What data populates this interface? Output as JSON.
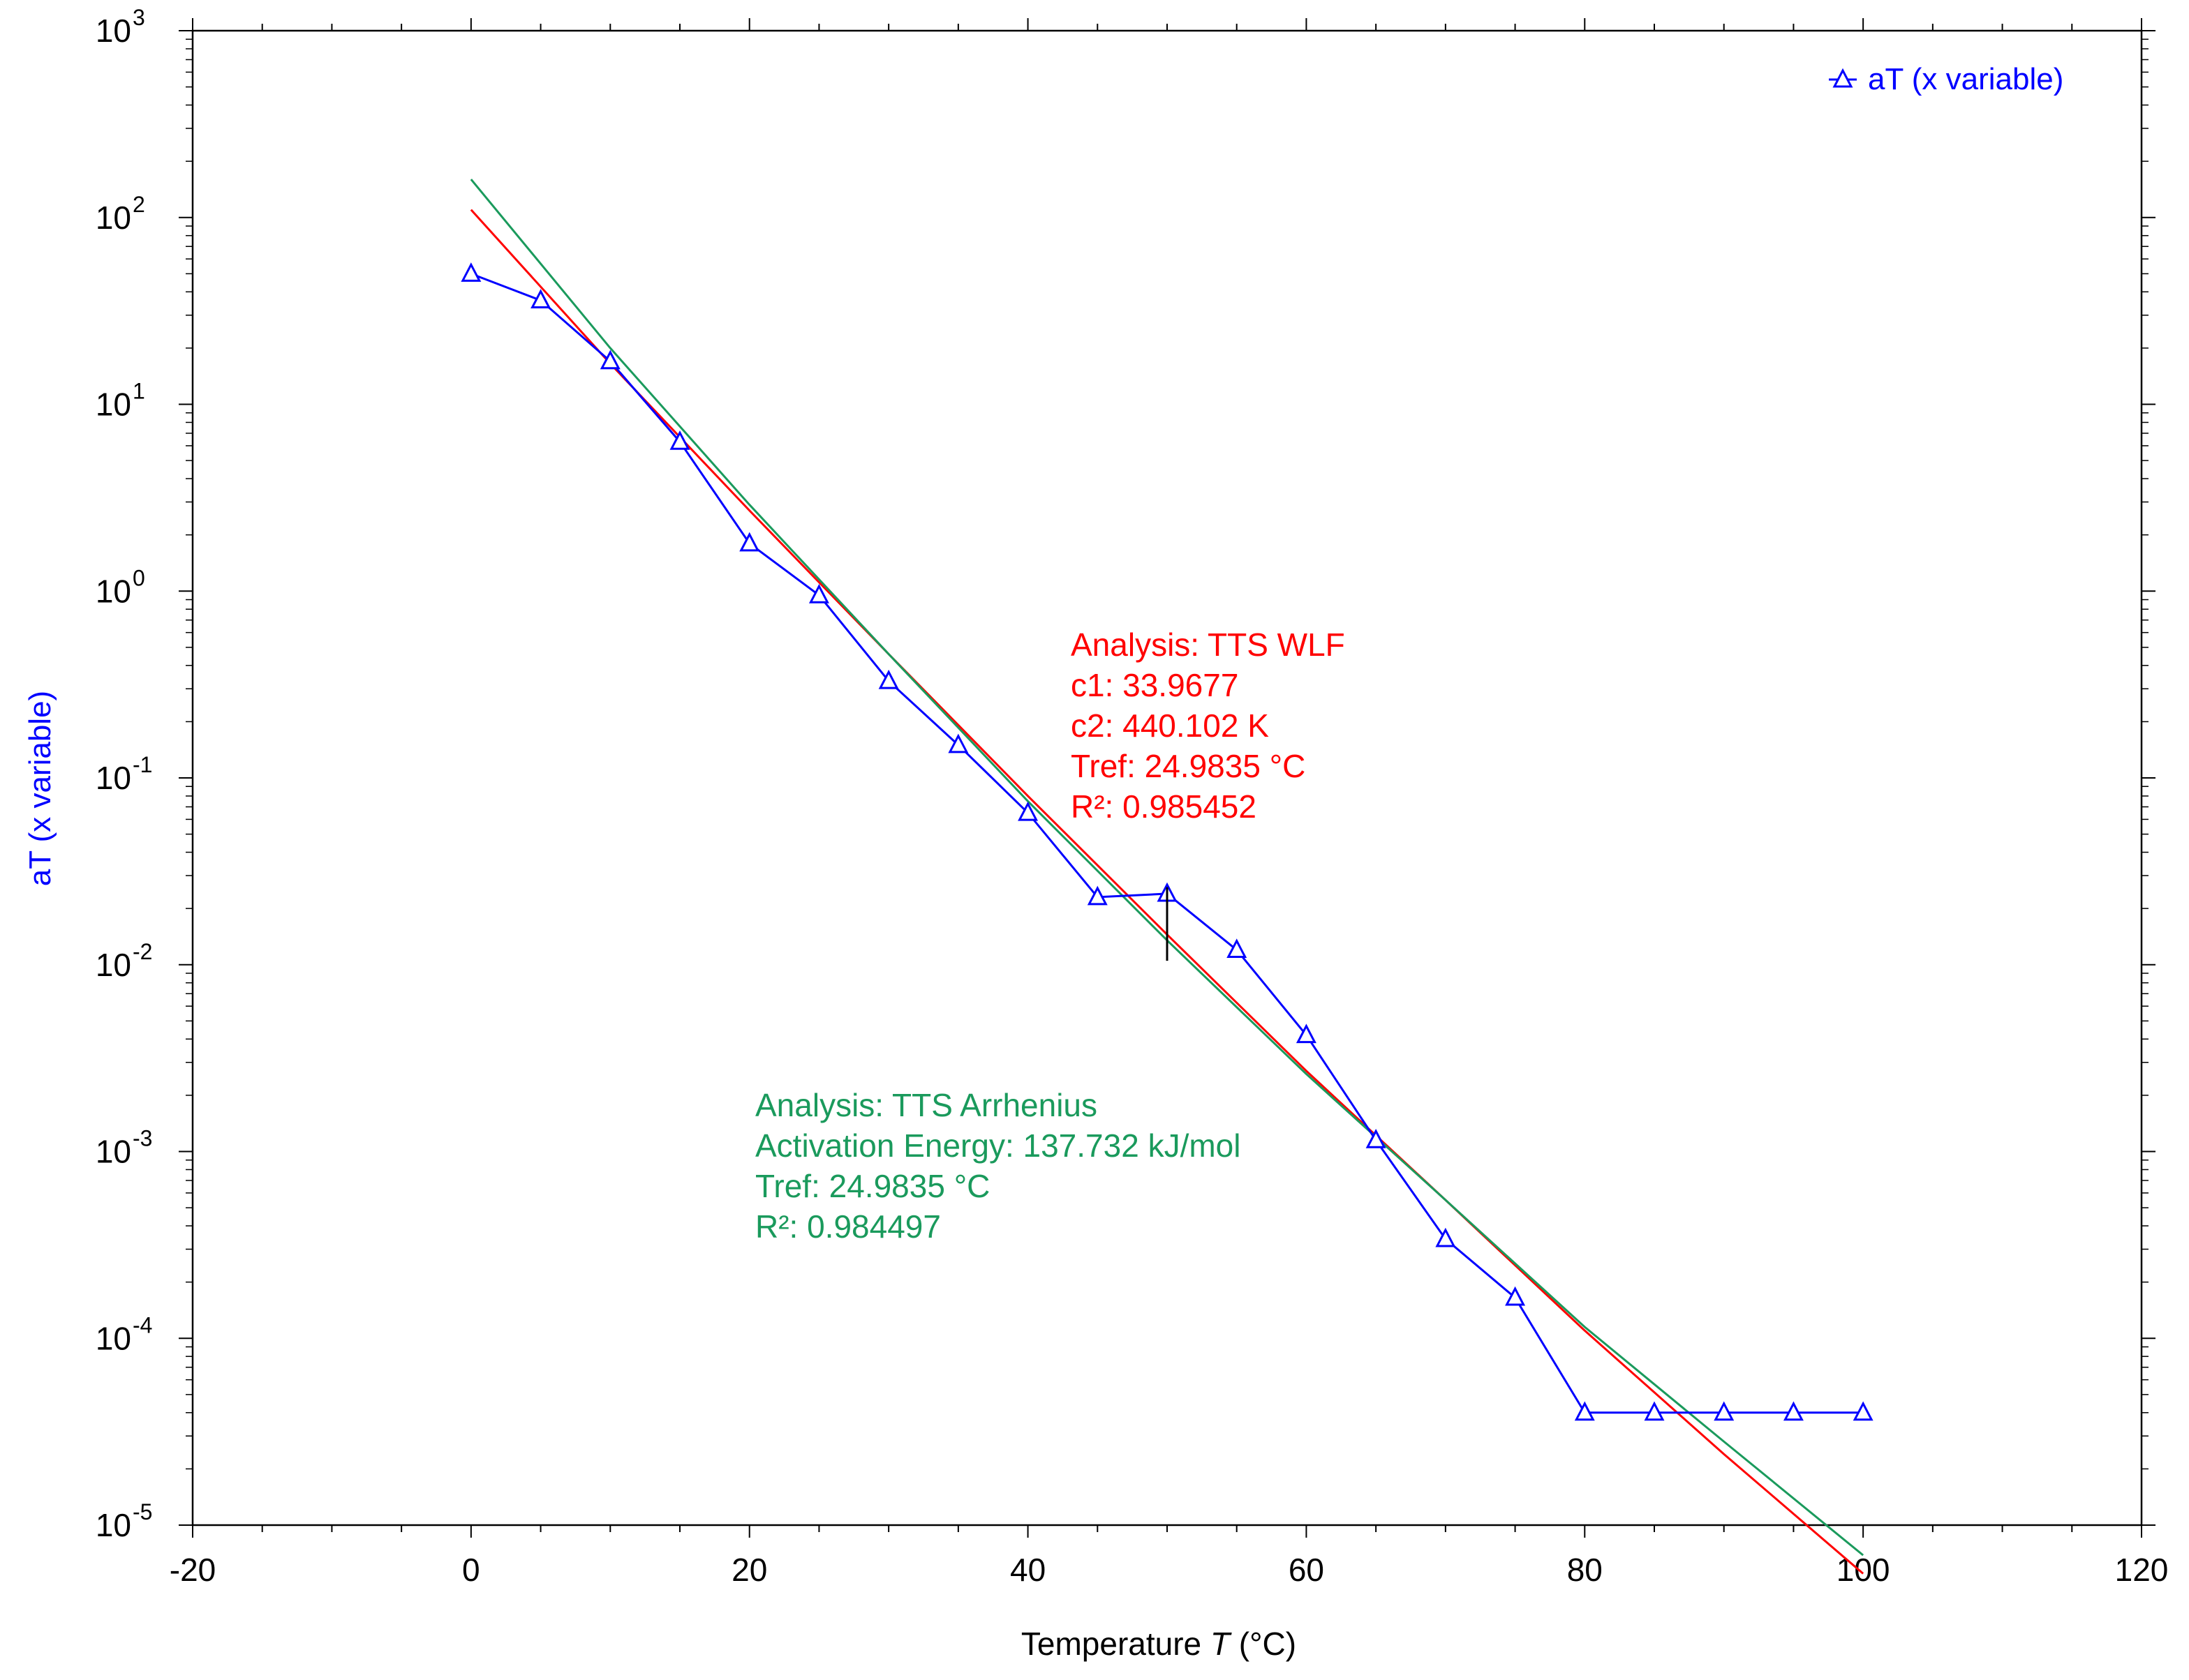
{
  "chart_data": {
    "type": "scatter",
    "xlabel_main": "Temperature",
    "xlabel_symbol": "T",
    "xlabel_unit": "(°C)",
    "ylabel": "aT (x variable)",
    "xlim": [
      -20,
      120
    ],
    "ylim": [
      1e-05,
      1000
    ],
    "y_scale": "log",
    "grid": false,
    "x_ticks": [
      -20,
      0,
      20,
      40,
      60,
      80,
      100,
      120
    ],
    "y_ticks": [
      {
        "base": "10",
        "exp": "-5",
        "value": 1e-05
      },
      {
        "base": "10",
        "exp": "-4",
        "value": 0.0001
      },
      {
        "base": "10",
        "exp": "-3",
        "value": 0.001
      },
      {
        "base": "10",
        "exp": "-2",
        "value": 0.01
      },
      {
        "base": "10",
        "exp": "-1",
        "value": 0.1
      },
      {
        "base": "10",
        "exp": "0",
        "value": 1
      },
      {
        "base": "10",
        "exp": "1",
        "value": 10
      },
      {
        "base": "10",
        "exp": "2",
        "value": 100
      },
      {
        "base": "10",
        "exp": "3",
        "value": 1000
      }
    ],
    "legend": {
      "placement": "top-right",
      "label": "aT (x variable)"
    },
    "colors": {
      "series": "#0000ff",
      "wlf": "#ff0000",
      "arrhenius": "#1a9a5c",
      "axis": "#000000"
    },
    "series": [
      {
        "name": "aT (x variable)",
        "marker": "triangle",
        "x": [
          0,
          5,
          10,
          15,
          20,
          25,
          30,
          35,
          40,
          45,
          50,
          55,
          60,
          65,
          70,
          75,
          80,
          85,
          90,
          95,
          100
        ],
        "y": [
          50,
          36,
          17,
          6.3,
          1.8,
          0.95,
          0.33,
          0.15,
          0.065,
          0.023,
          0.024,
          0.012,
          0.0042,
          0.00115,
          0.00034,
          0.000165,
          4e-05,
          4e-05,
          4e-05,
          4e-05,
          4e-05
        ]
      }
    ],
    "fits": [
      {
        "id": "wlf",
        "x": [
          0,
          10,
          20,
          30,
          40,
          50,
          60,
          70,
          80,
          90,
          100
        ],
        "y": [
          110,
          16.5,
          2.7,
          0.46,
          0.08,
          0.0145,
          0.0027,
          0.00055,
          0.00011,
          2.4e-05,
          5.5e-06
        ]
      },
      {
        "id": "arrhenius",
        "x": [
          0,
          10,
          20,
          30,
          40,
          50,
          60,
          70,
          80,
          90,
          100
        ],
        "y": [
          160,
          20,
          2.9,
          0.46,
          0.075,
          0.0135,
          0.0026,
          0.00055,
          0.000115,
          2.8e-05,
          6.9e-06
        ]
      }
    ],
    "tref_marker": {
      "x": 50,
      "y_low": 0.0105,
      "y_high": 0.026
    },
    "annotations": {
      "wlf": [
        "Analysis: TTS WLF",
        "c1: 33.9677",
        "c2: 440.102 K",
        "Tref: 24.9835 °C",
        "R²: 0.985452"
      ],
      "arrhenius": [
        "Analysis: TTS Arrhenius",
        "Activation Energy: 137.732 kJ/mol",
        "Tref: 24.9835 °C",
        "R²: 0.984497"
      ]
    }
  }
}
